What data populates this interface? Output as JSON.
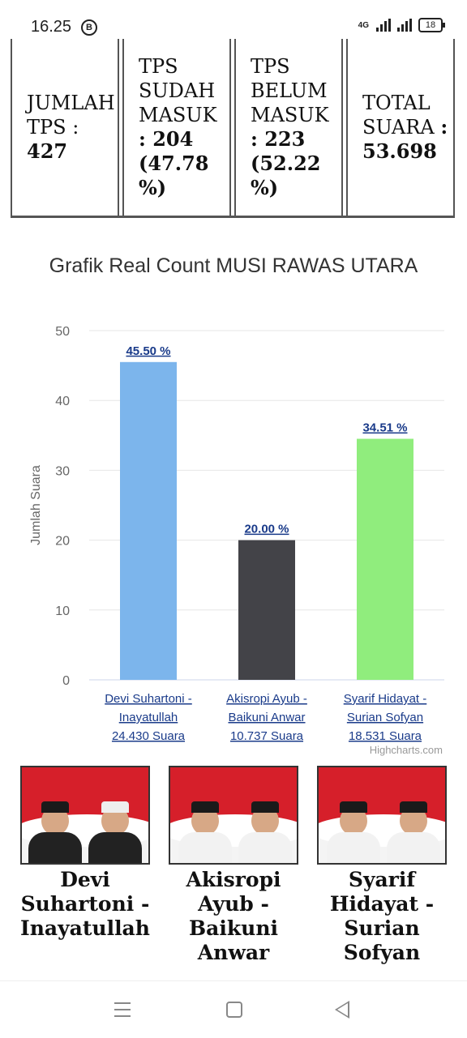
{
  "status_bar": {
    "time": "16.25",
    "badge": "B",
    "network": "4G",
    "battery": "18"
  },
  "tps_table": [
    {
      "label": "JUMLAH TPS :",
      "value": "427"
    },
    {
      "label": "TPS SUDAH MASUK",
      "value": ": 204 (47.78 %)"
    },
    {
      "label": "TPS BELUM MASUK",
      "value": ": 223 (52.22 %)"
    },
    {
      "label": "TOTAL SUARA",
      "value": ": 53.698"
    }
  ],
  "chart_data": {
    "type": "bar",
    "title": "Grafik Real Count MUSI RAWAS UTARA",
    "ylabel": "Jumlah Suara",
    "ylim": [
      0,
      50
    ],
    "yticks": [
      0,
      10,
      20,
      30,
      40,
      50
    ],
    "grid": true,
    "categories": [
      [
        "Devi Suhartoni -",
        "Inayatullah",
        "24.430 Suara"
      ],
      [
        "Akisropi Ayub -",
        "Baikuni Anwar",
        "10.737 Suara"
      ],
      [
        "Syarif Hidayat -",
        "Surian Sofyan",
        "18.531 Suara"
      ]
    ],
    "values": [
      45.5,
      20.0,
      34.51
    ],
    "data_labels": [
      "45.50 %",
      "20.00 %",
      "34.51 %"
    ],
    "colors": [
      "#7cb5ec",
      "#434348",
      "#90ed7d"
    ],
    "credit": "Highcharts.com"
  },
  "candidates": [
    {
      "name": "Devi Suhartoni - Inayatullah"
    },
    {
      "name": "Akisropi Ayub - Baikuni Anwar"
    },
    {
      "name": "Syarif Hidayat - Surian Sofyan"
    }
  ],
  "nav": {
    "icons": [
      "menu-icon",
      "home-icon",
      "back-icon"
    ]
  }
}
